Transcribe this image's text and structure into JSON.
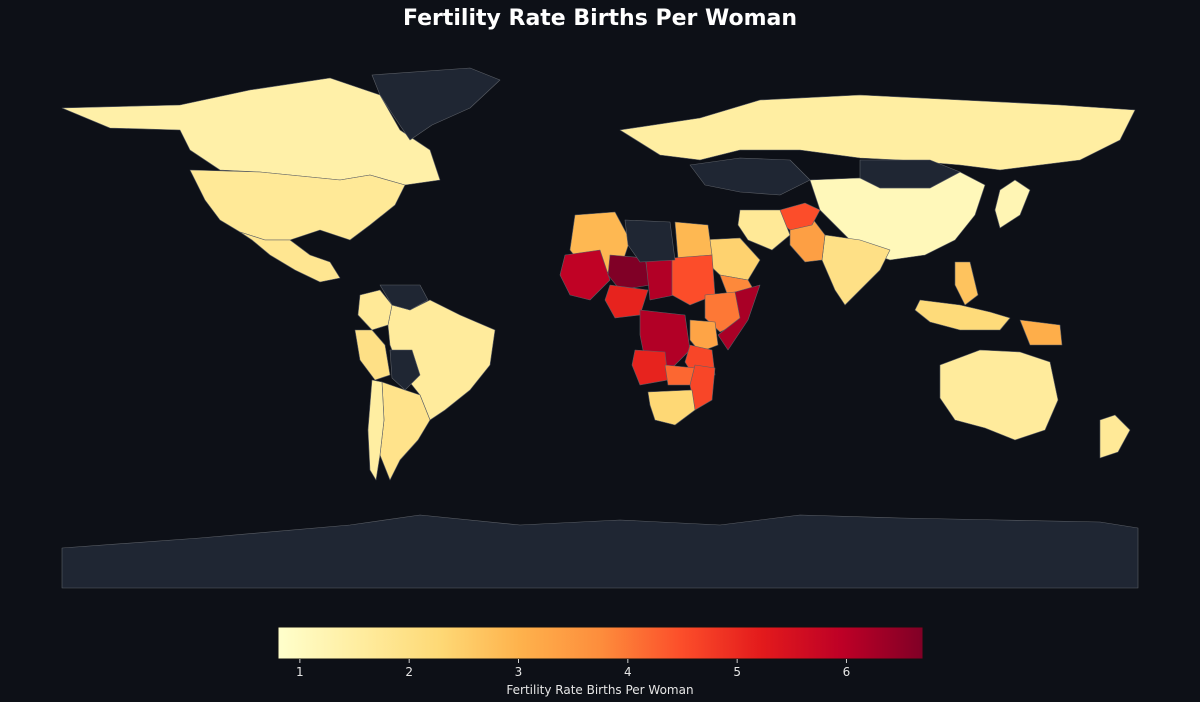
{
  "title": "Fertility Rate Births Per Woman",
  "colorbar": {
    "label": "Fertility Rate Births Per Woman",
    "min": 0.8,
    "max": 6.7,
    "ticks": [
      "1",
      "2",
      "3",
      "4",
      "5",
      "6"
    ],
    "colors": [
      "#ffffcc",
      "#ffeda0",
      "#fed976",
      "#feb24c",
      "#fd8d3c",
      "#fc4e2a",
      "#e31a1c",
      "#bd0026",
      "#800026"
    ]
  },
  "colors": {
    "background": "#0d1017",
    "no_data": "#1f2633",
    "border": "#5b5f66"
  },
  "chart_data": {
    "type": "choropleth",
    "title": "Fertility Rate Births Per Woman",
    "value_label": "Fertility Rate Births Per Woman",
    "range": [
      0.8,
      6.7
    ],
    "regions": [
      {
        "name": "Canada",
        "value": 1.4
      },
      {
        "name": "United States",
        "value": 1.7
      },
      {
        "name": "Mexico",
        "value": 1.8
      },
      {
        "name": "Brazil",
        "value": 1.6
      },
      {
        "name": "Argentina",
        "value": 1.9
      },
      {
        "name": "Peru",
        "value": 2.0
      },
      {
        "name": "Colombia",
        "value": 1.7
      },
      {
        "name": "Chile",
        "value": 1.5
      },
      {
        "name": "Russia",
        "value": 1.5
      },
      {
        "name": "China",
        "value": 1.1
      },
      {
        "name": "India",
        "value": 2.0
      },
      {
        "name": "Pakistan",
        "value": 3.4
      },
      {
        "name": "Afghanistan",
        "value": 4.5
      },
      {
        "name": "Saudi Arabia",
        "value": 2.4
      },
      {
        "name": "Yemen",
        "value": 3.8
      },
      {
        "name": "Iran",
        "value": 1.7
      },
      {
        "name": "Algeria",
        "value": 2.9
      },
      {
        "name": "Egypt",
        "value": 2.9
      },
      {
        "name": "Mali",
        "value": 5.9
      },
      {
        "name": "Niger",
        "value": 6.7
      },
      {
        "name": "Chad",
        "value": 6.1
      },
      {
        "name": "Nigeria",
        "value": 5.1
      },
      {
        "name": "Sudan",
        "value": 4.5
      },
      {
        "name": "Ethiopia",
        "value": 4.0
      },
      {
        "name": "Somalia",
        "value": 6.2
      },
      {
        "name": "DR Congo",
        "value": 6.1
      },
      {
        "name": "Angola",
        "value": 5.1
      },
      {
        "name": "Kenya",
        "value": 3.3
      },
      {
        "name": "Tanzania",
        "value": 4.6
      },
      {
        "name": "Zambia",
        "value": 4.2
      },
      {
        "name": "Mozambique",
        "value": 4.6
      },
      {
        "name": "South Africa",
        "value": 2.3
      },
      {
        "name": "Australia",
        "value": 1.6
      },
      {
        "name": "New Zealand",
        "value": 1.7
      },
      {
        "name": "Indonesia",
        "value": 2.2
      },
      {
        "name": "Philippines",
        "value": 2.7
      },
      {
        "name": "Papua New Guinea",
        "value": 3.1
      },
      {
        "name": "Japan",
        "value": 1.2
      },
      {
        "name": "Mongolia",
        "value": null
      },
      {
        "name": "Kazakhstan",
        "value": null
      },
      {
        "name": "Venezuela",
        "value": null
      },
      {
        "name": "Bolivia",
        "value": null
      },
      {
        "name": "Greenland",
        "value": null
      },
      {
        "name": "Libya",
        "value": null
      },
      {
        "name": "Antarctica",
        "value": null
      }
    ]
  }
}
